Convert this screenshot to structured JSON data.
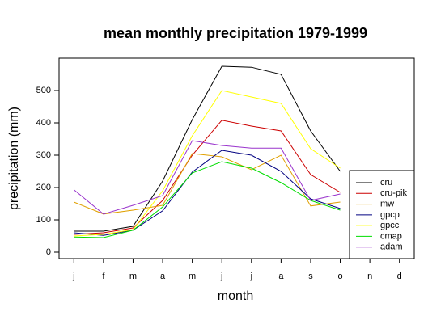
{
  "chart_data": {
    "type": "line",
    "title": "mean monthly precipitation 1979-1999",
    "x_label": "month",
    "y_label": "precipitation (mm)",
    "categories": [
      "j",
      "f",
      "m",
      "a",
      "m",
      "j",
      "j",
      "a",
      "s",
      "o",
      "n",
      "d"
    ],
    "ylim": [
      -20,
      600
    ],
    "yticks": [
      0,
      100,
      200,
      300,
      400,
      500
    ],
    "legend_position": "lower right",
    "series": [
      {
        "name": "cru",
        "color": "#000000",
        "values": [
          65,
          65,
          80,
          220,
          410,
          575,
          572,
          550,
          375,
          250,
          null,
          null
        ]
      },
      {
        "name": "cru-pik",
        "color": "#cc0000",
        "values": [
          55,
          60,
          75,
          160,
          300,
          408,
          390,
          375,
          240,
          185,
          null,
          null
        ]
      },
      {
        "name": "mw",
        "color": "#e0a000",
        "values": [
          155,
          118,
          130,
          145,
          305,
          295,
          255,
          300,
          143,
          155,
          null,
          null
        ]
      },
      {
        "name": "gpcp",
        "color": "#000080",
        "values": [
          60,
          52,
          68,
          128,
          248,
          315,
          300,
          250,
          165,
          135,
          null,
          null
        ]
      },
      {
        "name": "gpcc",
        "color": "#ffff00",
        "values": [
          50,
          55,
          70,
          190,
          360,
          500,
          480,
          460,
          320,
          260,
          null,
          null
        ]
      },
      {
        "name": "cmap",
        "color": "#00dd00",
        "values": [
          47,
          45,
          68,
          140,
          245,
          280,
          260,
          215,
          160,
          130,
          null,
          null
        ]
      },
      {
        "name": "adam",
        "color": "#9933cc",
        "values": [
          193,
          118,
          145,
          175,
          345,
          330,
          322,
          322,
          160,
          180,
          null,
          null
        ]
      }
    ]
  }
}
